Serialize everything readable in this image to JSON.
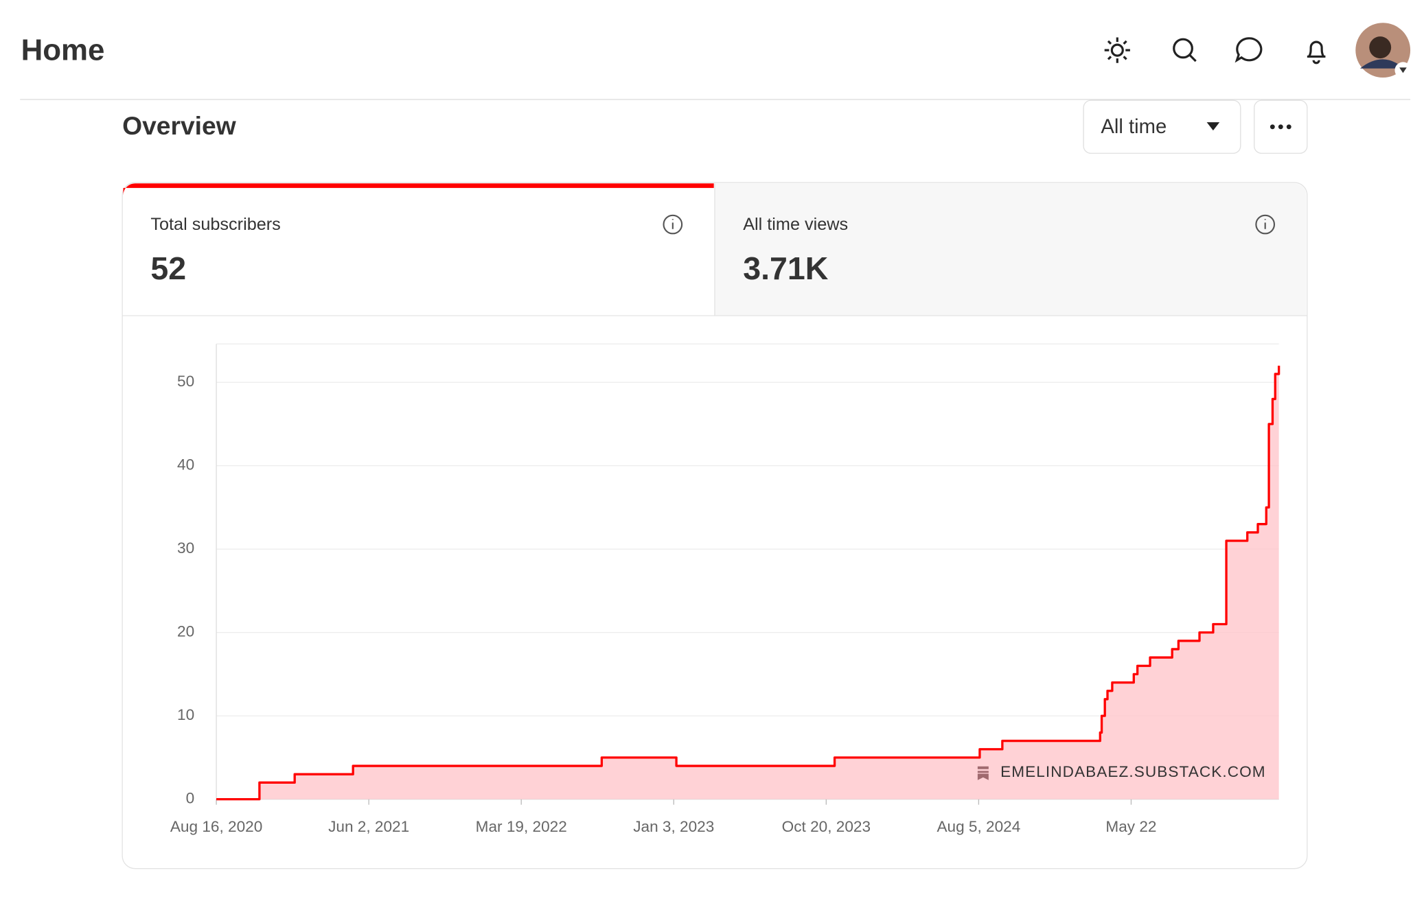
{
  "header": {
    "title": "Home"
  },
  "overview": {
    "title": "Overview",
    "range": "All time"
  },
  "stats": [
    {
      "label": "Total subscribers",
      "value": "52"
    },
    {
      "label": "All time views",
      "value": "3.71K"
    }
  ],
  "chart_data": {
    "type": "line",
    "step": "post",
    "color": "#ff0000",
    "fill": "#ffc7cc",
    "x": [
      0,
      82,
      149,
      260,
      733,
      875,
      1176,
      1452,
      1495,
      1681,
      1684,
      1690,
      1695,
      1704,
      1745,
      1752,
      1776,
      1818,
      1830,
      1870,
      1896,
      1921,
      1961,
      1981,
      1997,
      2002,
      2009,
      2014,
      2021
    ],
    "values": [
      0,
      2,
      3,
      4,
      5,
      4,
      5,
      6,
      7,
      8,
      10,
      12,
      13,
      14,
      15,
      16,
      17,
      18,
      19,
      20,
      21,
      31,
      32,
      33,
      35,
      45,
      48,
      51,
      52
    ],
    "xlim": [
      0,
      2021
    ],
    "xticks": [
      {
        "value": 0,
        "label": "Aug 16, 2020"
      },
      {
        "value": 290,
        "label": "Jun 2, 2021"
      },
      {
        "value": 580,
        "label": "Mar 19, 2022"
      },
      {
        "value": 870,
        "label": "Jan 3, 2023"
      },
      {
        "value": 1160,
        "label": "Oct 20, 2023"
      },
      {
        "value": 1450,
        "label": "Aug 5, 2024"
      },
      {
        "value": 1740,
        "label": "May 22"
      }
    ],
    "ylim": [
      0,
      54.6
    ],
    "yticks": [
      0,
      10,
      20,
      30,
      40,
      50
    ],
    "grid": true,
    "watermark": "EMELINDABAEZ.SUBSTACK.COM"
  }
}
